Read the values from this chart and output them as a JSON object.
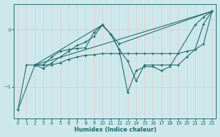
{
  "xlabel": "Humidex (Indice chaleur)",
  "ylabel": "",
  "background_color": "#cde8eb",
  "grid_color": "#b8d8db",
  "line_color": "#1a6b6b",
  "xlim": [
    -0.5,
    23.5
  ],
  "ylim": [
    -1.55,
    0.45
  ],
  "yticks": [
    0,
    -1
  ],
  "xticks": [
    0,
    1,
    2,
    3,
    4,
    5,
    6,
    7,
    8,
    9,
    10,
    11,
    12,
    13,
    14,
    15,
    16,
    17,
    18,
    19,
    20,
    21,
    22,
    23
  ],
  "line1_x": [
    0,
    1,
    2,
    3,
    4,
    5,
    6,
    7,
    8,
    9,
    10,
    11,
    12,
    13,
    14,
    15,
    16,
    17,
    18,
    19,
    20,
    21,
    22,
    23
  ],
  "line1_y": [
    -1.4,
    -0.62,
    -0.62,
    -0.62,
    -0.48,
    -0.38,
    -0.35,
    -0.33,
    -0.32,
    -0.05,
    0.08,
    -0.08,
    -0.35,
    -0.55,
    -0.9,
    -0.62,
    -0.62,
    -0.62,
    -0.62,
    -0.62,
    -0.48,
    -0.35,
    0.1,
    0.32
  ],
  "line2_x": [
    0,
    2,
    3,
    4,
    5,
    6,
    7,
    8,
    9,
    10,
    11,
    12,
    23
  ],
  "line2_y": [
    -1.4,
    -0.62,
    -0.68,
    -0.58,
    -0.48,
    -0.38,
    -0.28,
    -0.22,
    -0.12,
    0.08,
    -0.08,
    -0.25,
    0.32
  ],
  "line3_x": [
    2,
    3,
    4,
    5,
    6,
    7,
    8,
    9,
    10,
    11,
    12,
    13,
    14,
    15,
    16,
    17,
    18,
    19,
    20,
    21,
    22,
    23
  ],
  "line3_y": [
    -0.62,
    -0.62,
    -0.62,
    -0.58,
    -0.52,
    -0.48,
    -0.45,
    -0.44,
    -0.42,
    -0.42,
    -0.42,
    -0.42,
    -0.42,
    -0.42,
    -0.42,
    -0.42,
    -0.42,
    -0.42,
    -0.38,
    -0.35,
    -0.25,
    0.32
  ],
  "line4_x": [
    2,
    23
  ],
  "line4_y": [
    -0.62,
    0.32
  ],
  "line5_x": [
    2,
    10,
    11,
    12,
    13,
    14,
    15,
    16,
    17,
    18,
    21,
    22,
    23
  ],
  "line5_y": [
    -0.62,
    0.08,
    -0.08,
    -0.35,
    -1.1,
    -0.72,
    -0.65,
    -0.65,
    -0.72,
    -0.65,
    0.08,
    0.22,
    0.32
  ]
}
